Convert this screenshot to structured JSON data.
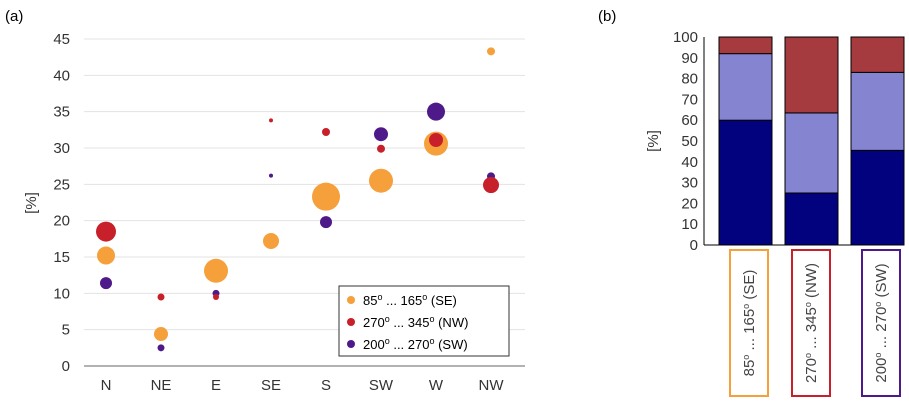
{
  "chart_data": [
    {
      "panel_label": "(a)",
      "type": "scatter",
      "ylabel": "[%]",
      "categories": [
        "N",
        "NE",
        "E",
        "SE",
        "S",
        "SW",
        "W",
        "NW"
      ],
      "yticks": [
        "0",
        "5",
        "10",
        "15",
        "20",
        "25",
        "30",
        "35",
        "40",
        "45"
      ],
      "ylim": [
        0,
        45
      ],
      "grid": true,
      "legend_position": "bottom-right",
      "series": [
        {
          "name": {
            "a": "85",
            "sup1": "o",
            "b": " ... 165",
            "sup2": "o",
            "c": " (SE)"
          },
          "color": "#f5a03a",
          "values": [
            15.2,
            4.4,
            13.1,
            17.2,
            23.3,
            25.5,
            30.6,
            43.3
          ],
          "sizes": [
            9,
            7,
            12,
            8,
            14,
            12,
            12,
            4
          ]
        },
        {
          "name": {
            "a": "270",
            "sup1": "o",
            "b": " ... 345",
            "sup2": "o",
            "c": " (NW)"
          },
          "color": "#c8202a",
          "values": [
            18.5,
            9.5,
            9.5,
            33.8,
            32.2,
            29.9,
            31.1,
            24.9
          ],
          "sizes": [
            10,
            3.5,
            3,
            2,
            4,
            4,
            7,
            8
          ]
        },
        {
          "name": {
            "a": "200",
            "sup1": "o",
            "b": " ... 270",
            "sup2": "o",
            "c": " (SW)"
          },
          "color": "#4e1a8a",
          "values": [
            11.4,
            2.5,
            10.0,
            26.2,
            19.8,
            31.9,
            35.0,
            26.1
          ],
          "sizes": [
            6,
            3.5,
            3.5,
            2,
            6,
            7,
            9,
            4
          ]
        }
      ]
    },
    {
      "panel_label": "(b)",
      "type": "bar",
      "stacked": true,
      "ylabel": "[%]",
      "yticks": [
        "0",
        "10",
        "20",
        "30",
        "40",
        "50",
        "60",
        "70",
        "80",
        "90",
        "100"
      ],
      "ylim": [
        0,
        100
      ],
      "categories": [
        {
          "a": "85",
          "sup1": "o",
          "b": " ... 165",
          "sup2": "o",
          "c": " (SE)",
          "box_color": "#f5a03a"
        },
        {
          "a": "270",
          "sup1": "o",
          "b": " ... 345",
          "sup2": "o",
          "c": " (NW)",
          "box_color": "#c8202a"
        },
        {
          "a": "200",
          "sup1": "o",
          "b": " ... 270",
          "sup2": "o",
          "c": " (SW)",
          "box_color": "#4e1a8a"
        }
      ],
      "series": [
        {
          "color": "#02027e",
          "values": [
            60,
            25,
            45.5
          ]
        },
        {
          "color": "#8584d0",
          "values": [
            32,
            38.5,
            37.5
          ]
        },
        {
          "color": "#a53b3e",
          "values": [
            8,
            36.5,
            17
          ]
        }
      ]
    }
  ]
}
